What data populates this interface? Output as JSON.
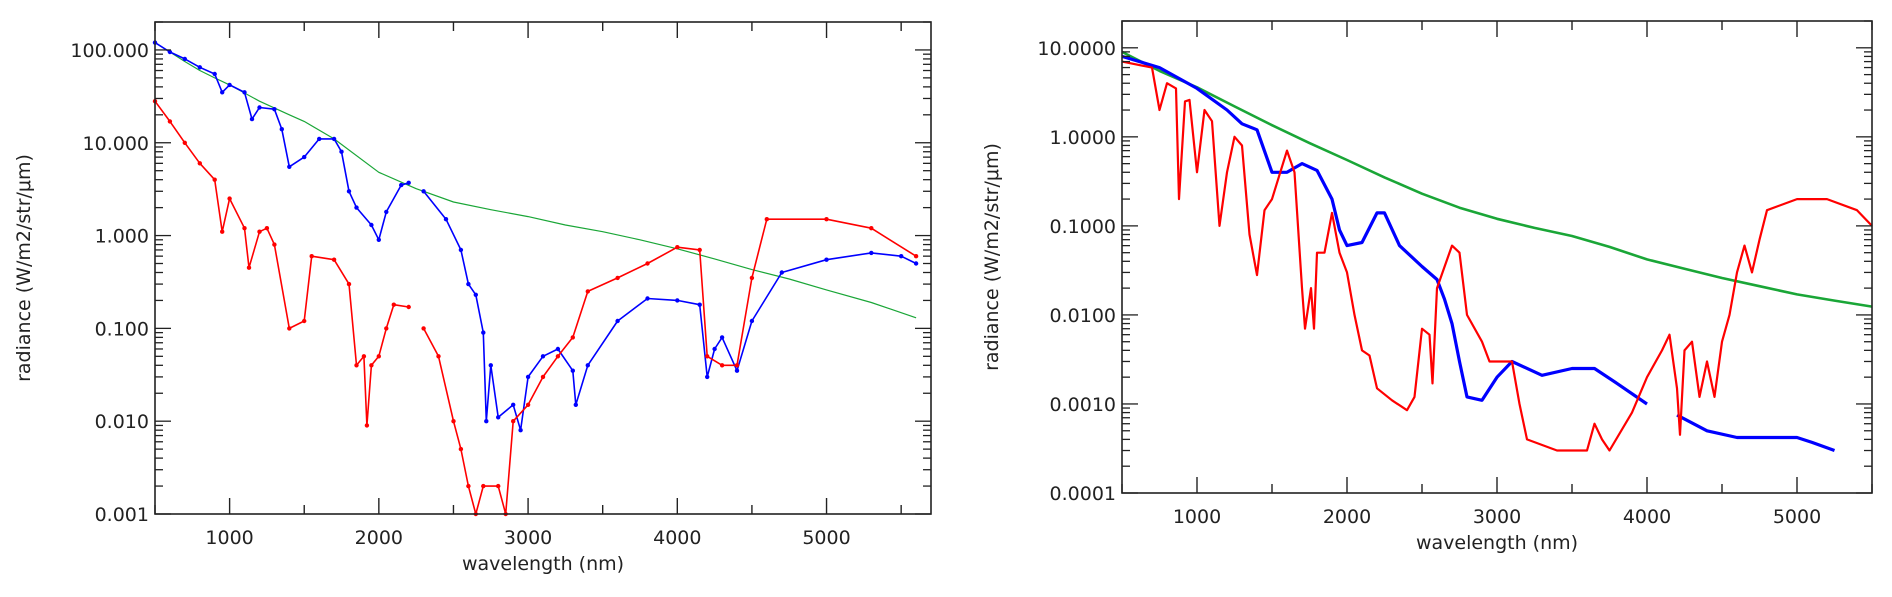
{
  "chart_data": [
    {
      "type": "line",
      "title": "",
      "xlabel": "wavelength (nm)",
      "ylabel": "radiance (W/m2/str/μm)",
      "xscale": "linear",
      "yscale": "log",
      "xlim": [
        500,
        5700
      ],
      "ylim": [
        0.001,
        200
      ],
      "xticks": [
        1000,
        2000,
        3000,
        4000,
        5000
      ],
      "xtick_labels": [
        "1000",
        "2000",
        "3000",
        "4000",
        "5000"
      ],
      "yticks": [
        0.001,
        0.01,
        0.1,
        1,
        10,
        100
      ],
      "ytick_labels": [
        "0.001",
        "0.010",
        "0.100",
        "1.000",
        "10.000",
        "100.000"
      ],
      "grid": false,
      "markers": true,
      "series": [
        {
          "name": "green",
          "color": "#1aa637",
          "x": [
            500,
            600,
            700,
            800,
            900,
            1000,
            1200,
            1400,
            1500,
            1700,
            2000,
            2250,
            2500,
            2750,
            3000,
            3250,
            3500,
            3750,
            4000,
            4250,
            4500,
            4750,
            5000,
            5300,
            5600
          ],
          "y": [
            120,
            95,
            75,
            60,
            50,
            42,
            28,
            20,
            17,
            11,
            4.8,
            3.2,
            2.3,
            1.9,
            1.6,
            1.3,
            1.1,
            0.9,
            0.72,
            0.56,
            0.43,
            0.34,
            0.26,
            0.19,
            0.13
          ]
        },
        {
          "name": "blue",
          "color": "#0000ff",
          "x": [
            500,
            600,
            700,
            800,
            900,
            950,
            1000,
            1100,
            1150,
            1200,
            1300,
            1350,
            1400,
            1500,
            1600,
            1700,
            1750,
            1800,
            1850,
            1950,
            2000,
            2050,
            2150,
            2200,
            null,
            2300,
            2450,
            2550,
            2600,
            2650,
            2700,
            2720,
            2750,
            2800,
            2900,
            2950,
            3000,
            3100,
            3200,
            3300,
            3320,
            3400,
            3600,
            3800,
            4000,
            4150,
            4200,
            4250,
            4300,
            4400,
            4500,
            4700,
            5000,
            5300,
            5500,
            5600
          ],
          "y": [
            120,
            95,
            80,
            65,
            55,
            35,
            42,
            35,
            18,
            24,
            23,
            14,
            5.5,
            7,
            11,
            11,
            8,
            3,
            2,
            1.3,
            0.9,
            1.8,
            3.5,
            3.7,
            null,
            3,
            1.5,
            0.7,
            0.3,
            0.23,
            0.09,
            0.01,
            0.04,
            0.011,
            0.015,
            0.008,
            0.03,
            0.05,
            0.06,
            0.035,
            0.015,
            0.04,
            0.12,
            0.21,
            0.2,
            0.18,
            0.03,
            0.06,
            0.08,
            0.035,
            0.12,
            0.4,
            0.55,
            0.65,
            0.6,
            0.5
          ]
        },
        {
          "name": "red",
          "color": "#ff0000",
          "x": [
            500,
            600,
            700,
            800,
            900,
            950,
            1000,
            1100,
            1130,
            1200,
            1250,
            1300,
            1400,
            1500,
            1550,
            1700,
            1800,
            1850,
            1900,
            1920,
            1950,
            2000,
            2050,
            2100,
            2200,
            null,
            2300,
            2400,
            2500,
            2550,
            2600,
            2650,
            2700,
            2800,
            2850,
            2900,
            3000,
            3100,
            3200,
            3300,
            3400,
            3600,
            3800,
            4000,
            4150,
            4200,
            4300,
            4400,
            4500,
            4600,
            5000,
            5300,
            5600
          ],
          "y": [
            28,
            17,
            10,
            6,
            4,
            1.1,
            2.5,
            1.2,
            0.45,
            1.1,
            1.2,
            0.8,
            0.1,
            0.12,
            0.6,
            0.55,
            0.3,
            0.04,
            0.05,
            0.009,
            0.04,
            0.05,
            0.1,
            0.18,
            0.17,
            null,
            0.1,
            0.05,
            0.01,
            0.005,
            0.002,
            0.001,
            0.002,
            0.002,
            0.001,
            0.01,
            0.015,
            0.03,
            0.05,
            0.08,
            0.25,
            0.35,
            0.5,
            0.75,
            0.7,
            0.05,
            0.04,
            0.04,
            0.35,
            1.5,
            1.5,
            1.2,
            0.6
          ]
        }
      ]
    },
    {
      "type": "line",
      "title": "",
      "xlabel": "wavelength (nm)",
      "ylabel": "radiance (W/m2/str/μm)",
      "xscale": "linear",
      "yscale": "log",
      "xlim": [
        500,
        5500
      ],
      "ylim": [
        0.0001,
        20
      ],
      "xticks": [
        1000,
        2000,
        3000,
        4000,
        5000
      ],
      "xtick_labels": [
        "1000",
        "2000",
        "3000",
        "4000",
        "5000"
      ],
      "yticks": [
        0.0001,
        0.001,
        0.01,
        0.1,
        1,
        10
      ],
      "ytick_labels": [
        "0.0001",
        "0.0010",
        "0.0100",
        "0.1000",
        "1.0000",
        "10.0000"
      ],
      "grid": false,
      "markers": false,
      "series": [
        {
          "name": "green",
          "color": "#1aa637",
          "x": [
            500,
            750,
            1000,
            1250,
            1500,
            1750,
            2000,
            2250,
            2500,
            2750,
            3000,
            3250,
            3500,
            3750,
            4000,
            4250,
            4500,
            4750,
            5000,
            5250,
            5500
          ],
          "y": [
            9,
            5.5,
            3.6,
            2.2,
            1.35,
            0.85,
            0.55,
            0.35,
            0.23,
            0.16,
            0.12,
            0.095,
            0.077,
            0.058,
            0.042,
            0.033,
            0.026,
            0.021,
            0.017,
            0.0145,
            0.0124
          ]
        },
        {
          "name": "blue",
          "color": "#0000ff",
          "x": [
            500,
            750,
            1000,
            1200,
            1300,
            1400,
            1500,
            1600,
            1700,
            1800,
            1900,
            1950,
            2000,
            2100,
            2200,
            2250,
            2350,
            2500,
            2600,
            2650,
            2700,
            2750,
            2800,
            2900,
            3000,
            3100,
            3300,
            3500,
            3650,
            3800,
            4000,
            null,
            4200,
            4400,
            4600,
            5000,
            5100,
            5250
          ],
          "y": [
            8,
            6,
            3.5,
            2,
            1.4,
            1.2,
            0.4,
            0.4,
            0.5,
            0.42,
            0.2,
            0.09,
            0.06,
            0.065,
            0.14,
            0.14,
            0.06,
            0.035,
            0.025,
            0.015,
            0.008,
            0.003,
            0.0012,
            0.0011,
            0.002,
            0.003,
            0.0021,
            0.0025,
            0.0025,
            0.0017,
            0.001,
            null,
            0.00075,
            0.0005,
            0.00042,
            0.00042,
            0.00037,
            0.0003
          ]
        },
        {
          "name": "red",
          "color": "#ff0000",
          "x": [
            500,
            700,
            750,
            800,
            860,
            880,
            920,
            950,
            1000,
            1050,
            1100,
            1150,
            1200,
            1250,
            1300,
            1350,
            1400,
            1450,
            1500,
            1600,
            1650,
            1700,
            1720,
            1760,
            1780,
            1800,
            1850,
            1900,
            1950,
            2000,
            2050,
            2100,
            2150,
            2200,
            2300,
            2400,
            2450,
            2500,
            2550,
            2570,
            2600,
            2700,
            2750,
            2800,
            2900,
            2950,
            3100,
            3150,
            3200,
            3400,
            3600,
            3650,
            3700,
            3750,
            3900,
            4000,
            4100,
            4150,
            4200,
            4220,
            4250,
            4300,
            4350,
            4400,
            4450,
            4500,
            4550,
            4600,
            4650,
            4700,
            4750,
            4800,
            5000,
            5200,
            5400,
            5500
          ],
          "y": [
            7,
            6,
            2,
            4,
            3.5,
            0.2,
            2.5,
            2.6,
            0.4,
            2,
            1.5,
            0.1,
            0.4,
            1,
            0.8,
            0.08,
            0.028,
            0.15,
            0.2,
            0.7,
            0.4,
            0.02,
            0.007,
            0.02,
            0.007,
            0.05,
            0.05,
            0.14,
            0.05,
            0.03,
            0.01,
            0.004,
            0.0035,
            0.0015,
            0.0011,
            0.00085,
            0.0012,
            0.007,
            0.006,
            0.0017,
            0.02,
            0.06,
            0.05,
            0.01,
            0.005,
            0.003,
            0.003,
            0.001,
            0.0004,
            0.0003,
            0.0003,
            0.0006,
            0.0004,
            0.0003,
            0.0008,
            0.002,
            0.004,
            0.006,
            0.0015,
            0.00045,
            0.004,
            0.005,
            0.0012,
            0.003,
            0.0012,
            0.005,
            0.01,
            0.03,
            0.06,
            0.03,
            0.07,
            0.15,
            0.2,
            0.2,
            0.15,
            0.1
          ]
        }
      ]
    }
  ]
}
